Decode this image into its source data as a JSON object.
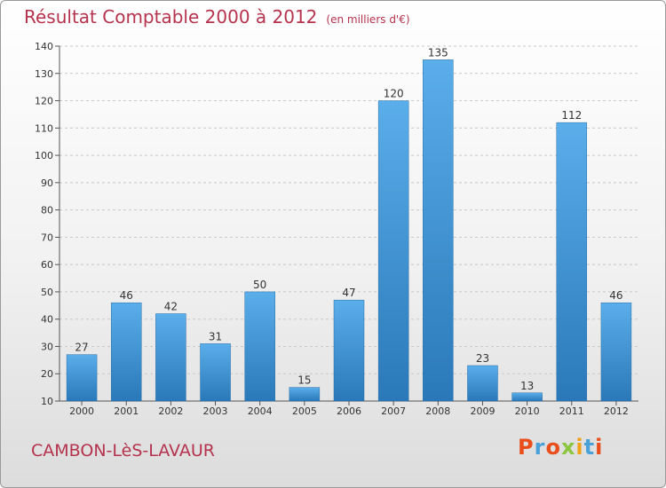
{
  "header": {
    "title": "Résultat Comptable 2000 à 2012",
    "subtitle": "(en milliers d'€)"
  },
  "footer": {
    "location": "CAMBON-LèS-LAVAUR",
    "logo": "Proxiti"
  },
  "colors": {
    "title": "#b5334d",
    "bar_light": "#5aaeea",
    "bar_dark": "#2a78b8",
    "logo": [
      "#e94e1b",
      "#4aa1d8",
      "#e94e1b",
      "#8cc63f",
      "#f0a21b",
      "#4aa1d8",
      "#e94e1b"
    ]
  },
  "chart_data": {
    "type": "bar",
    "title": "Résultat Comptable 2000 à 2012",
    "subtitle": "(en milliers d'€)",
    "categories": [
      "2000",
      "2001",
      "2002",
      "2003",
      "2004",
      "2005",
      "2006",
      "2007",
      "2008",
      "2009",
      "2010",
      "2011",
      "2012"
    ],
    "values": [
      27,
      46,
      42,
      31,
      50,
      15,
      47,
      120,
      135,
      23,
      13,
      112,
      46
    ],
    "ylim": [
      10,
      140
    ],
    "yticks": [
      10,
      20,
      30,
      40,
      50,
      60,
      70,
      80,
      90,
      100,
      110,
      120,
      130,
      140
    ],
    "grid": "horizontal dashed",
    "data_labels": true
  }
}
